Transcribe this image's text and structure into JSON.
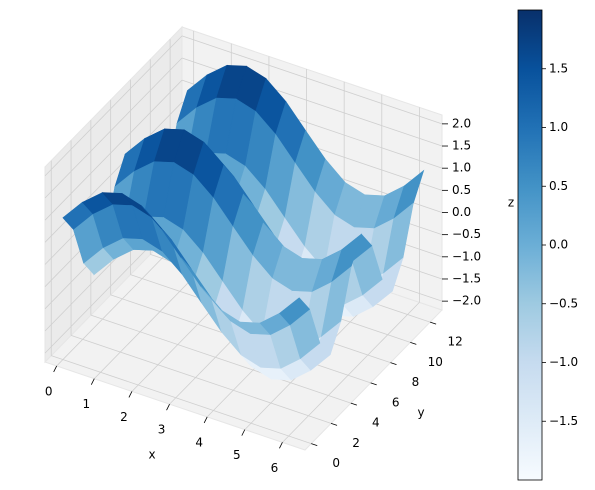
{
  "chart_data": {
    "type": "surface",
    "xlabel": "x",
    "ylabel": "y",
    "zlabel": "z",
    "x": [
      0,
      0.52,
      1.05,
      1.57,
      2.09,
      2.62,
      3.14,
      3.67,
      4.19,
      4.71,
      5.24,
      5.76,
      6.28
    ],
    "y": [
      0,
      1.05,
      2.09,
      3.14,
      4.19,
      5.24,
      6.28,
      7.33,
      8.38,
      9.42,
      10.47,
      11.52,
      12.57
    ],
    "z": [
      [
        1,
        1.5,
        1.87,
        2,
        1.87,
        1.5,
        1,
        0.5,
        0.13,
        0,
        0.13,
        0.5,
        1
      ],
      [
        0.5,
        1,
        1.37,
        1.5,
        1.37,
        1,
        0.5,
        0,
        -0.37,
        -0.5,
        -0.37,
        0,
        0.5
      ],
      [
        -0.5,
        0,
        0.37,
        0.5,
        0.37,
        0,
        -0.5,
        -1,
        -1.37,
        -1.5,
        -1.37,
        -1,
        -0.5
      ],
      [
        -1,
        -0.5,
        -0.13,
        0,
        -0.13,
        -0.5,
        -1,
        -1.5,
        -1.87,
        -2,
        -1.87,
        -1.5,
        -1
      ],
      [
        -0.5,
        0,
        0.37,
        0.5,
        0.37,
        0,
        -0.5,
        -1,
        -1.37,
        -1.5,
        -1.37,
        -1,
        -0.5
      ],
      [
        0.5,
        1,
        1.37,
        1.5,
        1.37,
        1,
        0.5,
        0,
        -0.37,
        -0.5,
        -0.37,
        0,
        0.5
      ],
      [
        1,
        1.5,
        1.87,
        2,
        1.87,
        1.5,
        1,
        0.5,
        0.13,
        0,
        0.13,
        0.5,
        1
      ],
      [
        0.5,
        1,
        1.37,
        1.5,
        1.37,
        1,
        0.5,
        0,
        -0.37,
        -0.5,
        -0.37,
        0,
        0.5
      ],
      [
        -0.5,
        0,
        0.37,
        0.5,
        0.37,
        0,
        -0.5,
        -1,
        -1.37,
        -1.5,
        -1.37,
        -1,
        -0.5
      ],
      [
        -1,
        -0.5,
        -0.13,
        0,
        -0.13,
        -0.5,
        -1,
        -1.5,
        -1.87,
        -2,
        -1.87,
        -1.5,
        -1
      ],
      [
        -0.5,
        0,
        0.37,
        0.5,
        0.37,
        0,
        -0.5,
        -1,
        -1.37,
        -1.5,
        -1.37,
        -1,
        -0.5
      ],
      [
        0.5,
        1,
        1.37,
        1.5,
        1.37,
        1,
        0.5,
        0,
        -0.37,
        -0.5,
        -0.37,
        0,
        0.5
      ],
      [
        1,
        1.5,
        1.87,
        2,
        1.87,
        1.5,
        1,
        0.5,
        0.13,
        0,
        0.13,
        0.5,
        1
      ]
    ],
    "xlim": [
      -0.31,
      6.6
    ],
    "ylim": [
      -0.63,
      13.2
    ],
    "zlim": [
      -2.2,
      2.2
    ],
    "xticks": [
      0,
      1,
      2,
      3,
      4,
      5,
      6
    ],
    "yticks": [
      0,
      2,
      4,
      6,
      8,
      10,
      12
    ],
    "zticks": [
      {
        "value": -2,
        "label": "−2.0"
      },
      {
        "value": -1.5,
        "label": "−1.5"
      },
      {
        "value": -1,
        "label": "−1.0"
      },
      {
        "value": -0.5,
        "label": "−0.5"
      },
      {
        "value": 0,
        "label": "0.0"
      },
      {
        "value": 0.5,
        "label": "0.5"
      },
      {
        "value": 1,
        "label": "1.0"
      },
      {
        "value": 1.5,
        "label": "1.5"
      },
      {
        "value": 2,
        "label": "2.0"
      }
    ],
    "colorbar_ticks": [
      {
        "value": -1.5,
        "label": "−1.5"
      },
      {
        "value": -1,
        "label": "−1.0"
      },
      {
        "value": -0.5,
        "label": "−0.5"
      },
      {
        "value": 0,
        "label": "0.0"
      },
      {
        "value": 0.5,
        "label": "0.5"
      },
      {
        "value": 1,
        "label": "1.0"
      },
      {
        "value": 1.5,
        "label": "1.5"
      }
    ],
    "colormap": [
      "#f7fbff",
      "#deebf7",
      "#c6dbef",
      "#9ecae1",
      "#6baed6",
      "#4292c6",
      "#2171b5",
      "#08519c",
      "#08306b"
    ],
    "grid": true
  }
}
